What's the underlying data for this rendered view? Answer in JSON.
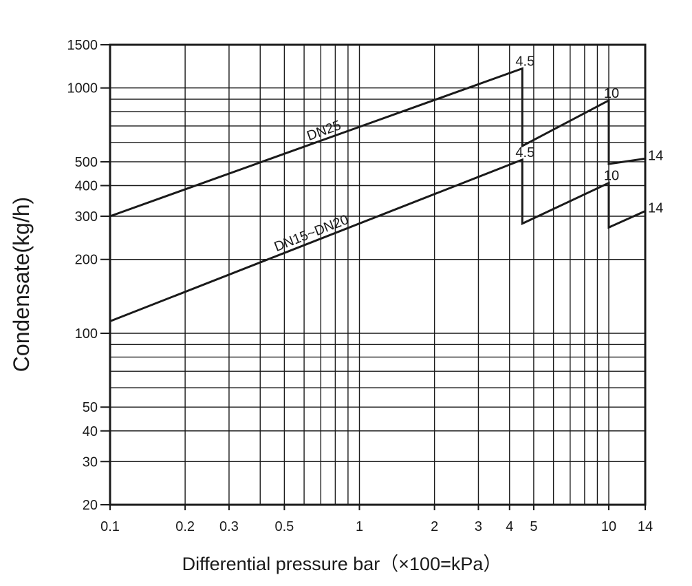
{
  "chart_data": {
    "type": "line",
    "title": "",
    "xlabel": "Differential pressure bar（×100=kPa）",
    "ylabel": "Condensate(kg/h)",
    "xscale": "log",
    "yscale": "log",
    "xlim": [
      0.1,
      14
    ],
    "ylim": [
      20,
      1500
    ],
    "grid": true,
    "x_ticks": [
      {
        "value": 0.1,
        "label": "0.1"
      },
      {
        "value": 0.2,
        "label": "0.2"
      },
      {
        "value": 0.3,
        "label": "0.3"
      },
      {
        "value": 0.5,
        "label": "0.5"
      },
      {
        "value": 1,
        "label": "1"
      },
      {
        "value": 2,
        "label": "2"
      },
      {
        "value": 3,
        "label": "3"
      },
      {
        "value": 4,
        "label": "4"
      },
      {
        "value": 5,
        "label": "5"
      },
      {
        "value": 10,
        "label": "10"
      },
      {
        "value": 14,
        "label": "14"
      }
    ],
    "y_ticks": [
      {
        "value": 20,
        "label": "20"
      },
      {
        "value": 30,
        "label": "30"
      },
      {
        "value": 40,
        "label": "40"
      },
      {
        "value": 50,
        "label": "50"
      },
      {
        "value": 100,
        "label": "100"
      },
      {
        "value": 200,
        "label": "200"
      },
      {
        "value": 300,
        "label": "300"
      },
      {
        "value": 400,
        "label": "400"
      },
      {
        "value": 500,
        "label": "500"
      },
      {
        "value": 1000,
        "label": "1000"
      },
      {
        "value": 1500,
        "label": "1500"
      }
    ],
    "x_gridlines": [
      0.1,
      0.2,
      0.3,
      0.4,
      0.5,
      0.6,
      0.7,
      0.8,
      0.9,
      1,
      2,
      3,
      4,
      5,
      6,
      7,
      8,
      9,
      10,
      14
    ],
    "y_gridlines": [
      20,
      30,
      40,
      50,
      60,
      70,
      80,
      90,
      100,
      200,
      300,
      400,
      500,
      600,
      700,
      800,
      900,
      1000,
      1500
    ],
    "series": [
      {
        "name": "DN25",
        "points": [
          {
            "x": 0.1,
            "y": 300
          },
          {
            "x": 4.5,
            "y": 1200
          },
          {
            "x": 4.5,
            "y": 580
          },
          {
            "x": 10,
            "y": 890
          },
          {
            "x": 10,
            "y": 490
          },
          {
            "x": 14,
            "y": 515
          }
        ]
      },
      {
        "name": "DN15~DN20",
        "points": [
          {
            "x": 0.1,
            "y": 112
          },
          {
            "x": 4.5,
            "y": 510
          },
          {
            "x": 4.5,
            "y": 280
          },
          {
            "x": 10,
            "y": 410
          },
          {
            "x": 10,
            "y": 270
          },
          {
            "x": 14,
            "y": 315
          }
        ]
      }
    ],
    "annotations": [
      {
        "text": "4.5",
        "x": 4.5,
        "y": 1200
      },
      {
        "text": "10",
        "x": 10,
        "y": 890
      },
      {
        "text": "14",
        "x": 14,
        "y": 515
      },
      {
        "text": "4.5",
        "x": 4.5,
        "y": 510
      },
      {
        "text": "10",
        "x": 10,
        "y": 410
      },
      {
        "text": "14",
        "x": 14,
        "y": 315
      }
    ]
  }
}
